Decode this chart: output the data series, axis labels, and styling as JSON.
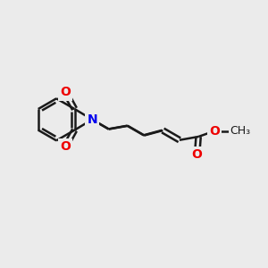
{
  "bg_color": "#ebebeb",
  "bond_color": "#1a1a1a",
  "N_color": "#0000ee",
  "O_color": "#ee0000",
  "line_width": 1.8,
  "font_size_atom": 10,
  "figsize": [
    3.0,
    3.0
  ],
  "dpi": 100,
  "xlim": [
    0,
    10
  ],
  "ylim": [
    0,
    10
  ]
}
